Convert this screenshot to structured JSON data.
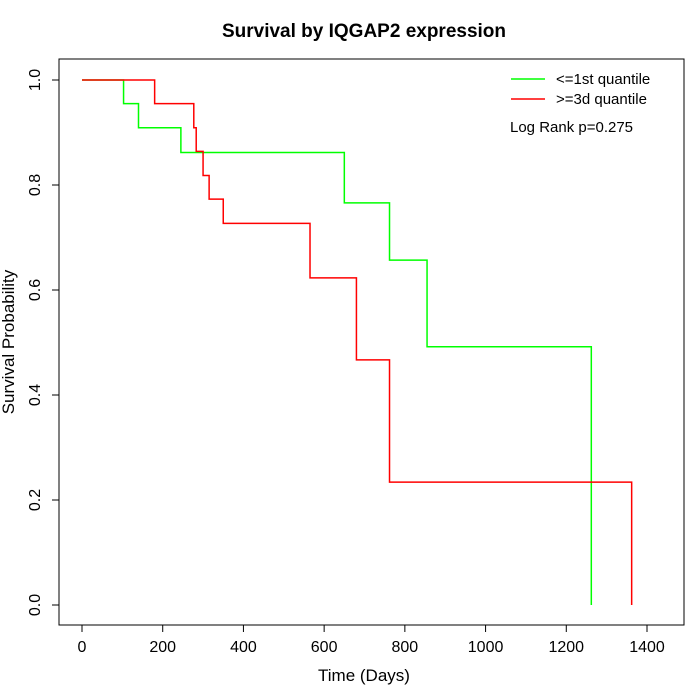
{
  "chart_data": {
    "type": "line",
    "title": "Survival by IQGAP2 expression",
    "xlabel": "Time (Days)",
    "ylabel": "Survival Probability",
    "xlim": [
      0,
      1400
    ],
    "ylim": [
      0,
      1
    ],
    "xticks": [
      0,
      200,
      400,
      600,
      800,
      1000,
      1200,
      1400
    ],
    "xtick_labels": [
      "0",
      "200",
      "400",
      "600",
      "800",
      "1000",
      "1200",
      "1400"
    ],
    "yticks": [
      0,
      0.2,
      0.4,
      0.6,
      0.8,
      1
    ],
    "ytick_labels": [
      "0.0",
      "0.2",
      "0.4",
      "0.6",
      "0.8",
      "1.0"
    ],
    "grid": false,
    "legend_position": "top-right",
    "annotation": "Log Rank p=0.275",
    "series": [
      {
        "name": "<=1st quantile",
        "color": "#00ff00",
        "step": true,
        "x": [
          0,
          103,
          140,
          245,
          650,
          762,
          855,
          1262
        ],
        "y": [
          1.0,
          0.955,
          0.909,
          0.862,
          0.766,
          0.657,
          0.492,
          0.0
        ]
      },
      {
        "name": ">=3d quantile",
        "color": "#ff0000",
        "step": true,
        "x": [
          0,
          180,
          277,
          283,
          300,
          315,
          350,
          565,
          680,
          762,
          1362
        ],
        "y": [
          1.0,
          0.955,
          0.909,
          0.864,
          0.818,
          0.773,
          0.727,
          0.623,
          0.467,
          0.234,
          0.0
        ]
      }
    ]
  }
}
